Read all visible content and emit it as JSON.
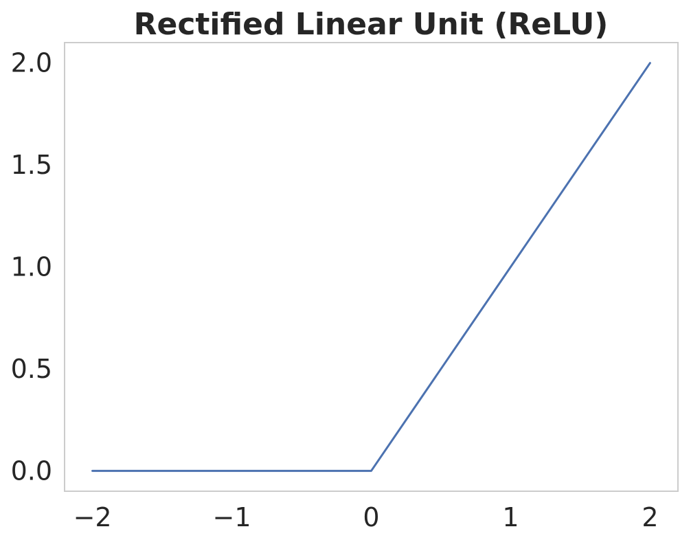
{
  "chart_data": {
    "type": "line",
    "title": "Rectified Linear Unit (ReLU)",
    "xlabel": "",
    "ylabel": "",
    "xlim": [
      -2.2,
      2.2
    ],
    "ylim": [
      -0.1,
      2.1
    ],
    "xticks": [
      -2,
      -1,
      0,
      1,
      2
    ],
    "xtick_labels": [
      "−2",
      "−1",
      "0",
      "1",
      "2"
    ],
    "yticks": [
      0.0,
      0.5,
      1.0,
      1.5,
      2.0
    ],
    "ytick_labels": [
      "0.0",
      "0.5",
      "1.0",
      "1.5",
      "2.0"
    ],
    "grid": false,
    "series": [
      {
        "color": "#4c72b0",
        "x": [
          -2,
          -1.5,
          -1,
          -0.5,
          0,
          0.5,
          1,
          1.5,
          2
        ],
        "y": [
          0,
          0,
          0,
          0,
          0,
          0.5,
          1,
          1.5,
          2
        ]
      }
    ]
  },
  "colors": {
    "line": "#4c72b0",
    "spine": "#cccccc",
    "text": "#262626",
    "background": "#ffffff"
  }
}
